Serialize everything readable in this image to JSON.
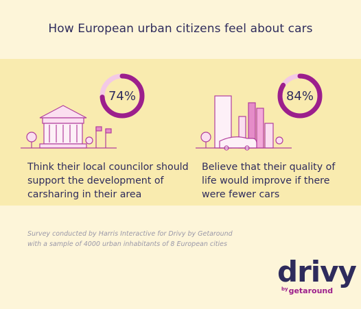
{
  "title": "How European urban citizens feel about cars",
  "ring_color": "#9c1f8c",
  "track_color": "#f3c9e6",
  "stats": [
    {
      "value": 74,
      "value_label": "74%",
      "text": "Think their local councilor should support the development of carsharing in their area"
    },
    {
      "value": 84,
      "value_label": "84%",
      "text": "Believe that their quality of life would improve if there were fewer cars"
    }
  ],
  "footnote": "Survey conducted by Harris Interactive for Drivy by Getaround with a sample of 4000 urban inhabitants of 8 European cities",
  "logo": {
    "name": "drivy",
    "by": "by",
    "brand": "getaround"
  }
}
